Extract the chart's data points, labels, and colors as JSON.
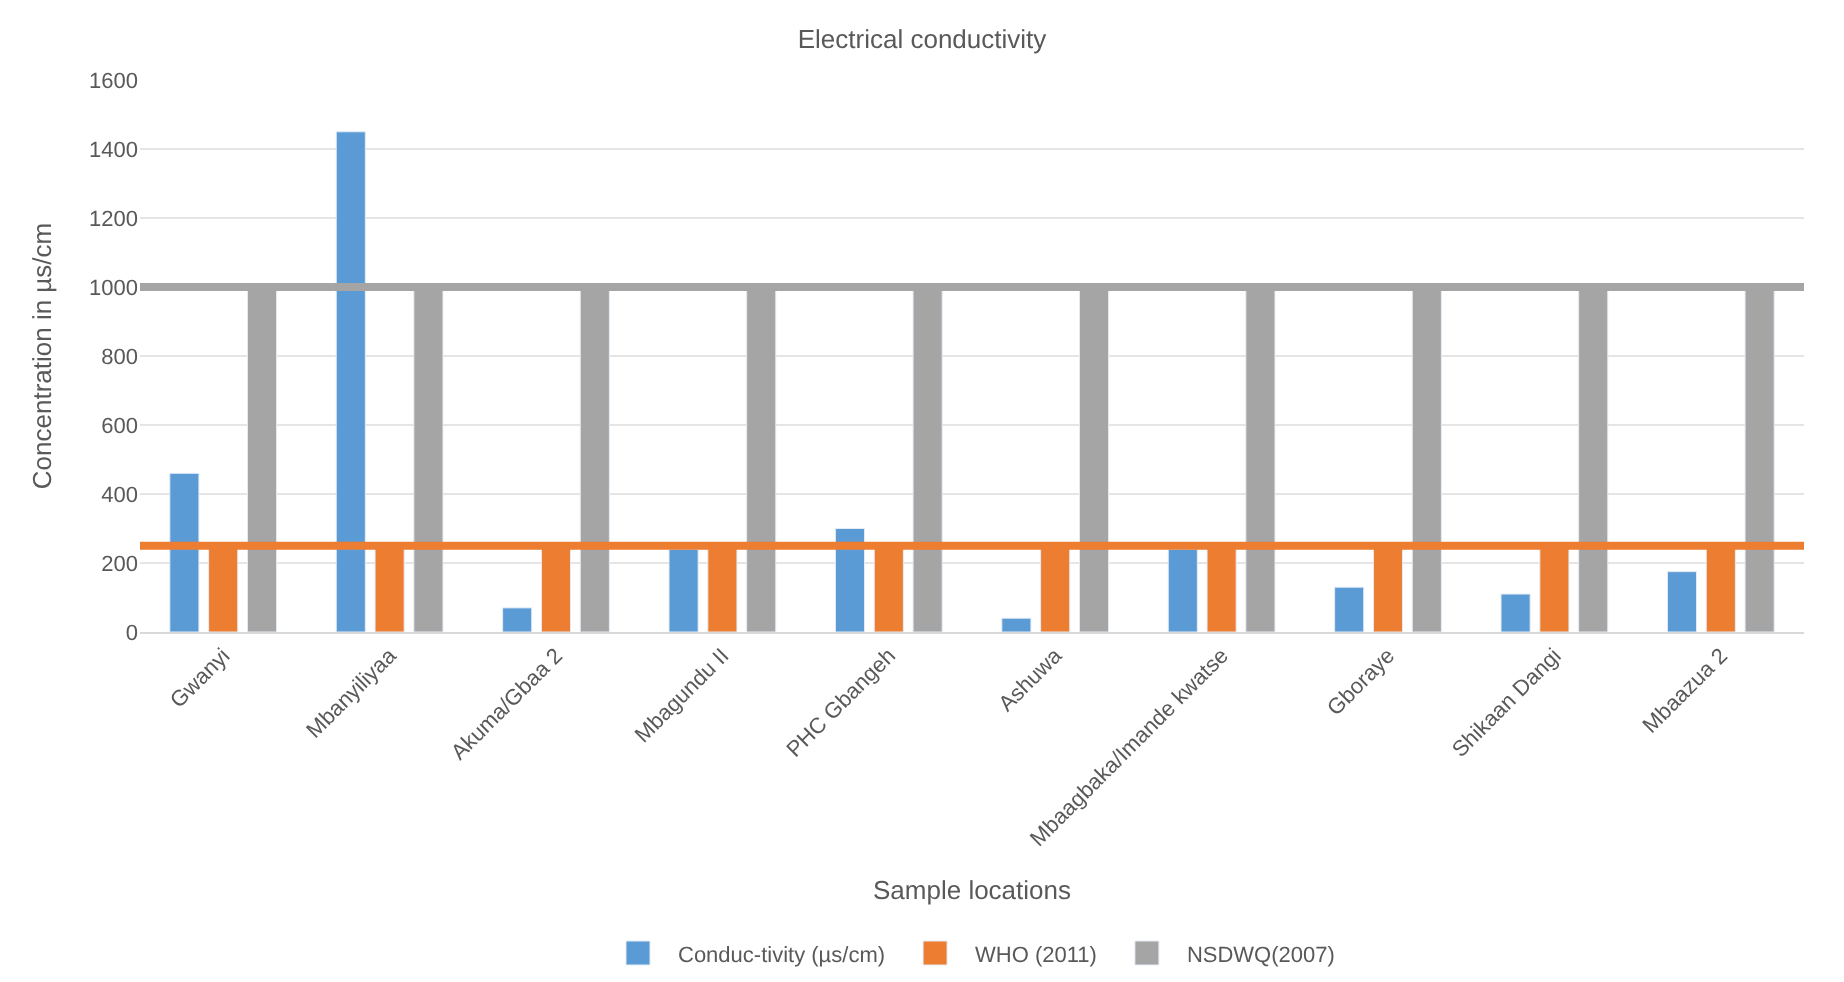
{
  "chart_data": {
    "type": "bar",
    "title": "Electrical conductivity",
    "xlabel": "Sample locations",
    "ylabel": "Concentration in µs/cm",
    "categories": [
      "Gwanyi",
      "Mbanyiliyaa",
      "Akuma/Gbaa 2",
      "Mbagundu II",
      "PHC Gbangeh",
      "Ashuwa",
      "Mbaagbaka/Imande kwatse",
      "Gboraye",
      "Shikaan Dangi",
      "Mbaazua 2"
    ],
    "series": [
      {
        "name": "Conduc-tivity (µs/cm)",
        "color": "#5b9bd5",
        "values": [
          460,
          1450,
          70,
          240,
          300,
          40,
          240,
          130,
          110,
          175
        ]
      },
      {
        "name": "WHO (2011)",
        "color": "#ed7d31",
        "values": [
          250,
          250,
          250,
          250,
          250,
          250,
          250,
          250,
          250,
          250
        ]
      },
      {
        "name": "NSDWQ(2007)",
        "color": "#a5a5a5",
        "values": [
          1000,
          1000,
          1000,
          1000,
          1000,
          1000,
          1000,
          1000,
          1000,
          1000
        ]
      }
    ],
    "ref_lines": [
      {
        "axis": "y",
        "value": 250,
        "color": "#ed7d31"
      },
      {
        "axis": "y",
        "value": 1000,
        "color": "#a5a5a5"
      }
    ],
    "ylim": [
      0,
      1600
    ],
    "yticks": [
      0,
      200,
      400,
      600,
      800,
      1000,
      1200,
      1400,
      1600
    ],
    "grid": "y",
    "legend": "bottom"
  }
}
